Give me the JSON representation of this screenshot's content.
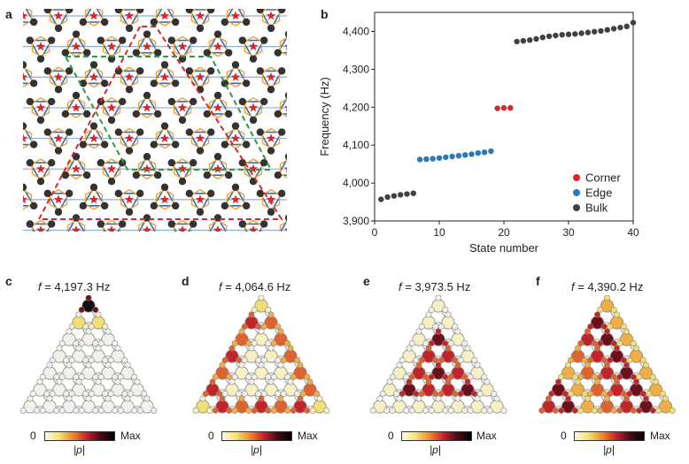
{
  "panel_labels": {
    "a": "a",
    "b": "b",
    "c": "c",
    "d": "d",
    "e": "e",
    "f": "f"
  },
  "chart_data": {
    "type": "scatter",
    "xlabel": "State number",
    "ylabel": "Frequency (Hz)",
    "xlim": [
      0,
      40
    ],
    "ylim": [
      3900,
      4450
    ],
    "xticks": [
      0,
      10,
      20,
      30,
      40
    ],
    "yticks": [
      3900,
      4000,
      4100,
      4200,
      4300,
      4400
    ],
    "ytick_labels": [
      "3,900",
      "4,000",
      "4,100",
      "4,200",
      "4,300",
      "4,400"
    ],
    "legend_position": "bottom-right",
    "series": [
      {
        "name": "Bulk",
        "color": "#404040",
        "x": [
          1,
          2,
          3,
          4,
          5,
          6,
          22,
          23,
          24,
          25,
          26,
          27,
          28,
          29,
          30,
          31,
          32,
          33,
          34,
          35,
          36,
          37,
          38,
          39,
          40
        ],
        "y": [
          3957,
          3963,
          3966,
          3969,
          3971,
          3973,
          4373,
          4375,
          4377,
          4380,
          4384,
          4387,
          4389,
          4391,
          4392,
          4393,
          4395,
          4397,
          4399,
          4401,
          4404,
          4407,
          4410,
          4413,
          4423
        ]
      },
      {
        "name": "Edge",
        "color": "#2a78b8",
        "x": [
          7,
          8,
          9,
          10,
          11,
          12,
          13,
          14,
          15,
          16,
          17,
          18
        ],
        "y": [
          4062,
          4063,
          4064,
          4066,
          4068,
          4070,
          4072,
          4074,
          4076,
          4079,
          4081,
          4084
        ]
      },
      {
        "name": "Corner",
        "color": "#d02a2a",
        "x": [
          19,
          20,
          21
        ],
        "y": [
          4197,
          4198,
          4198
        ]
      }
    ]
  },
  "field_panels": [
    {
      "id": "c",
      "f_prefix": "f",
      "f_value": " = 4,197.3 Hz",
      "cmin": "0",
      "cmax": "Max",
      "caption": "|p|"
    },
    {
      "id": "d",
      "f_prefix": "f",
      "f_value": " = 4,064.6 Hz",
      "cmin": "0",
      "cmax": "Max",
      "caption": "|p|"
    },
    {
      "id": "e",
      "f_prefix": "f",
      "f_value": " = 3,973.5 Hz",
      "cmin": "0",
      "cmax": "Max",
      "caption": "|p|"
    },
    {
      "id": "f",
      "f_prefix": "f",
      "f_value": " = 4,390.2 Hz",
      "cmin": "0",
      "cmax": "Max",
      "caption": "|p|"
    }
  ],
  "colors": {
    "lattice_blue": "#2e6fb0",
    "lattice_orange": "#f2a33a",
    "star_red": "#d6282a",
    "dash_red": "#d6282a",
    "dash_green": "#2e9a3e",
    "node_dark": "#333333"
  }
}
